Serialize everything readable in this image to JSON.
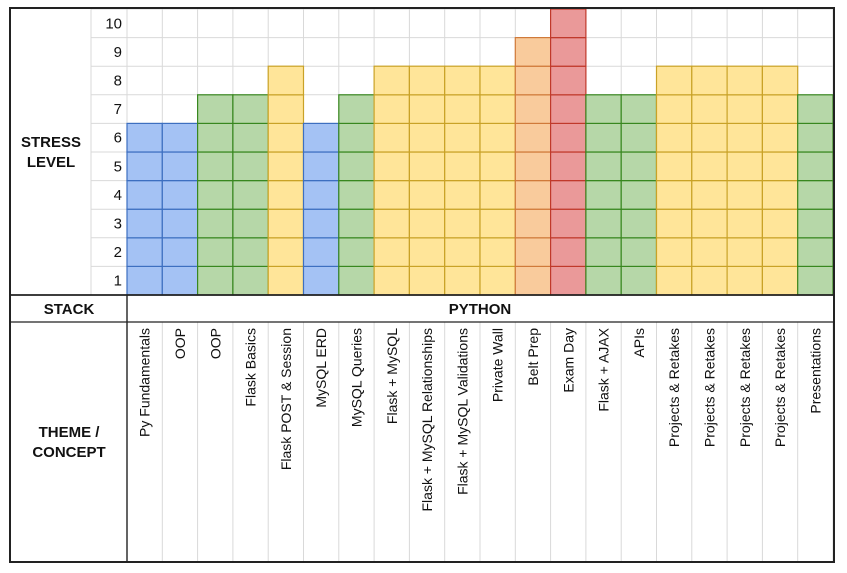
{
  "labels": {
    "stress_axis": [
      "STRESS",
      "LEVEL"
    ],
    "stack_label": "STACK",
    "stack_value": "PYTHON",
    "theme_axis": [
      "THEME /",
      "CONCEPT"
    ]
  },
  "colors": {
    "blue": "#a4c2f4",
    "blue_border": "#3d6fc0",
    "green": "#b6d7a8",
    "green_border": "#38871f",
    "yellow": "#ffe599",
    "yellow_border": "#c9a227",
    "orange": "#f9cb9c",
    "orange_border": "#d07a3a",
    "red": "#ea9999",
    "red_border": "#c0392b"
  },
  "chart_data": {
    "type": "bar",
    "ylim": [
      0,
      10
    ],
    "yticks": [
      1,
      2,
      3,
      4,
      5,
      6,
      7,
      8,
      9,
      10
    ],
    "categories": [
      "Py Fundamentals",
      "OOP",
      "OOP",
      "Flask Basics",
      "Flask POST & Session",
      "MySQL ERD",
      "MySQL Queries",
      "Flask + MySQL",
      "Flask + MySQL Relationships",
      "Flask + MySQL Validations",
      "Private Wall",
      "Belt Prep",
      "Exam Day",
      "Flask + AJAX",
      "APIs",
      "Projects & Retakes",
      "Projects & Retakes",
      "Projects & Retakes",
      "Projects & Retakes",
      "Presentations"
    ],
    "values": [
      6,
      6,
      7,
      7,
      8,
      6,
      7,
      8,
      8,
      8,
      8,
      9,
      10,
      7,
      7,
      8,
      8,
      8,
      8,
      7
    ],
    "bar_colors": [
      "blue",
      "blue",
      "green",
      "green",
      "yellow",
      "blue",
      "green",
      "yellow",
      "yellow",
      "yellow",
      "yellow",
      "orange",
      "red",
      "green",
      "green",
      "yellow",
      "yellow",
      "yellow",
      "yellow",
      "green"
    ],
    "grid": true
  }
}
